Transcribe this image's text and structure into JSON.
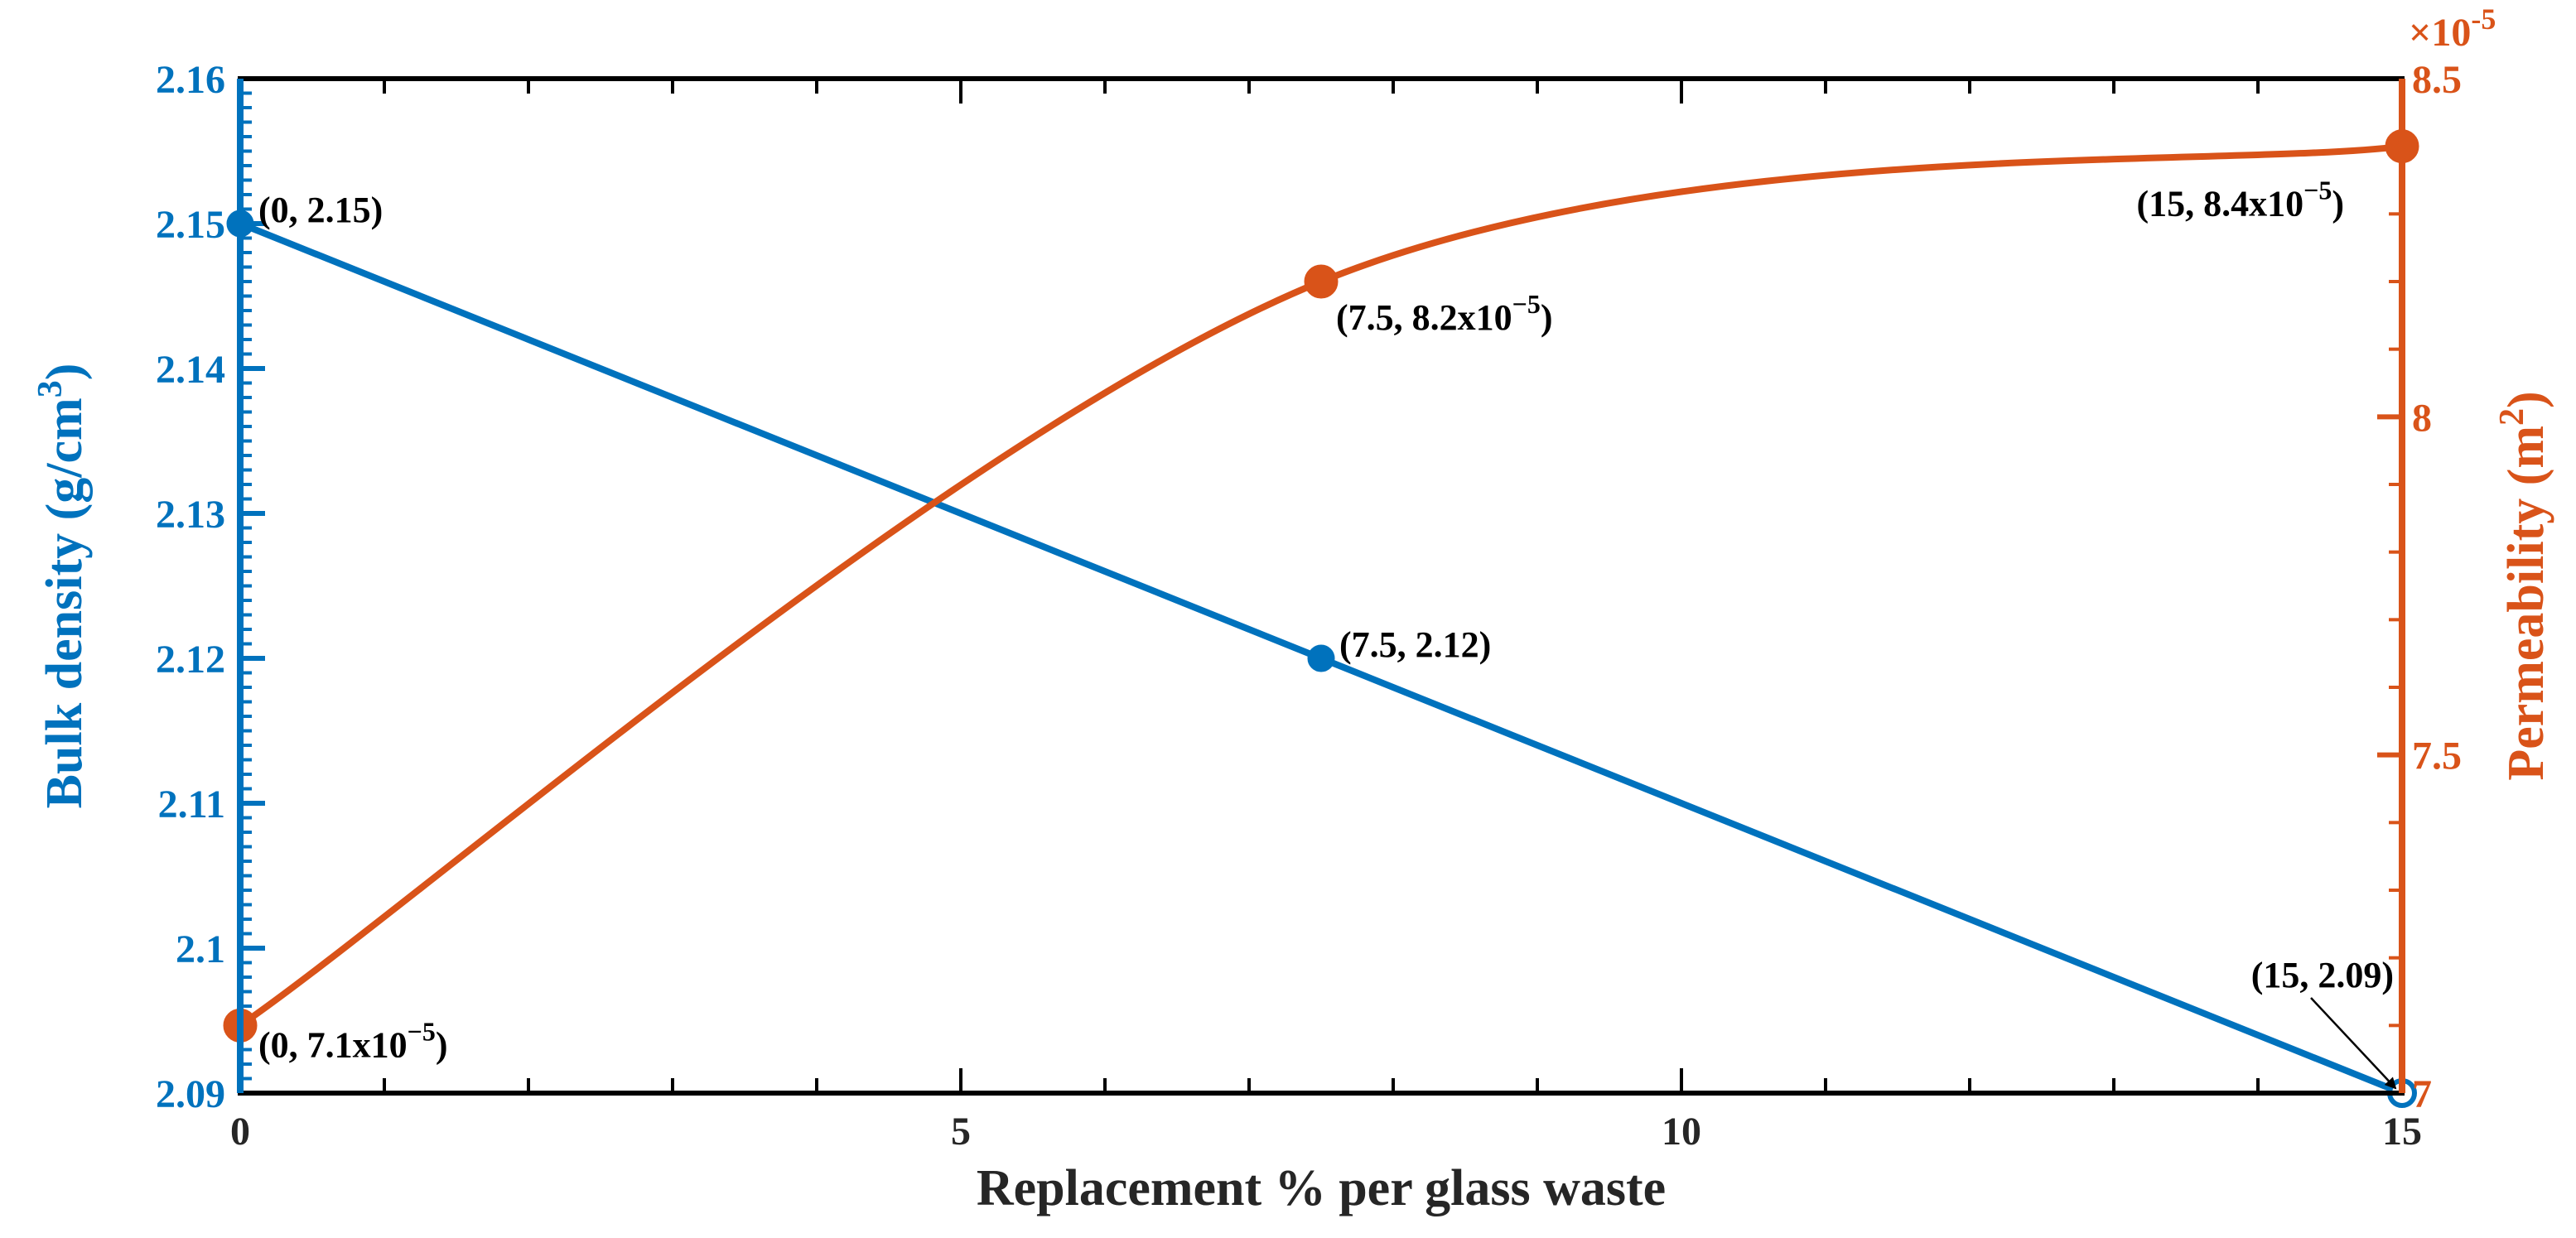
{
  "chart_data": {
    "type": "line",
    "xlabel": "Replacement % per glass waste",
    "x": [
      0,
      7.5,
      15
    ],
    "xlim": [
      0,
      15
    ],
    "xticks": [
      "0",
      "5",
      "10",
      "15"
    ],
    "y_left": {
      "label": "Bulk density (g/cm",
      "label_sup": "3",
      "label_end": ")",
      "lim": [
        2.09,
        2.16
      ],
      "ticks": [
        "2.09",
        "2.1",
        "2.11",
        "2.12",
        "2.13",
        "2.14",
        "2.15",
        "2.16"
      ],
      "color": "#0072BD"
    },
    "y_right": {
      "label": "Permeability (m",
      "label_sup": "2",
      "label_end": ")",
      "lim": [
        7.0,
        8.5
      ],
      "ticks": [
        "7",
        "7.5",
        "8",
        "8.5"
      ],
      "multiplier": "×10",
      "multiplier_exp": "-5",
      "color": "#D95319"
    },
    "series": [
      {
        "name": "Bulk density",
        "axis": "left",
        "values": [
          2.15,
          2.12,
          2.09
        ],
        "color": "#0072BD"
      },
      {
        "name": "Permeability",
        "axis": "right",
        "values": [
          7.1,
          8.2,
          8.4
        ],
        "color": "#D95319"
      }
    ],
    "annotations": [
      {
        "id": "bd0",
        "base": "(0, 2.15)"
      },
      {
        "id": "bd1",
        "base": "(7.5, 2.12)"
      },
      {
        "id": "bd2",
        "base": "(15, 2.09)"
      },
      {
        "id": "pm0",
        "base": "(0, 7.1x10",
        "sup": "−5",
        "end": ")"
      },
      {
        "id": "pm1",
        "base": "(7.5, 8.2x10",
        "sup": "−5",
        "end": ")"
      },
      {
        "id": "pm2",
        "base": "(15, 8.4x10",
        "sup": "−5",
        "end": ")"
      }
    ]
  }
}
